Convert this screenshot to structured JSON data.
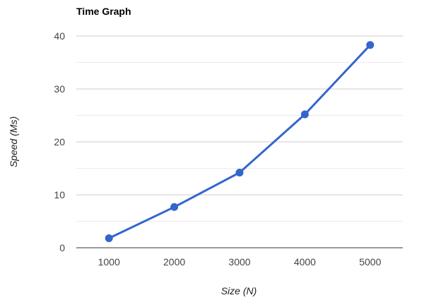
{
  "chart_data": {
    "type": "line",
    "title": "Time Graph",
    "xlabel": "Size (N)",
    "ylabel": "Speed (Ms)",
    "x": [
      1000,
      2000,
      3000,
      4000,
      5000
    ],
    "series": [
      {
        "values": [
          1.8,
          7.7,
          14.2,
          25.2,
          38.3
        ]
      }
    ],
    "xlim": [
      500,
      5500
    ],
    "ylim": [
      0,
      40
    ],
    "yticks": [
      0,
      10,
      20,
      30,
      40
    ],
    "xticks": [
      1000,
      2000,
      3000,
      4000,
      5000
    ],
    "grid": true,
    "legend": "none",
    "line_color": "#3366cc"
  }
}
